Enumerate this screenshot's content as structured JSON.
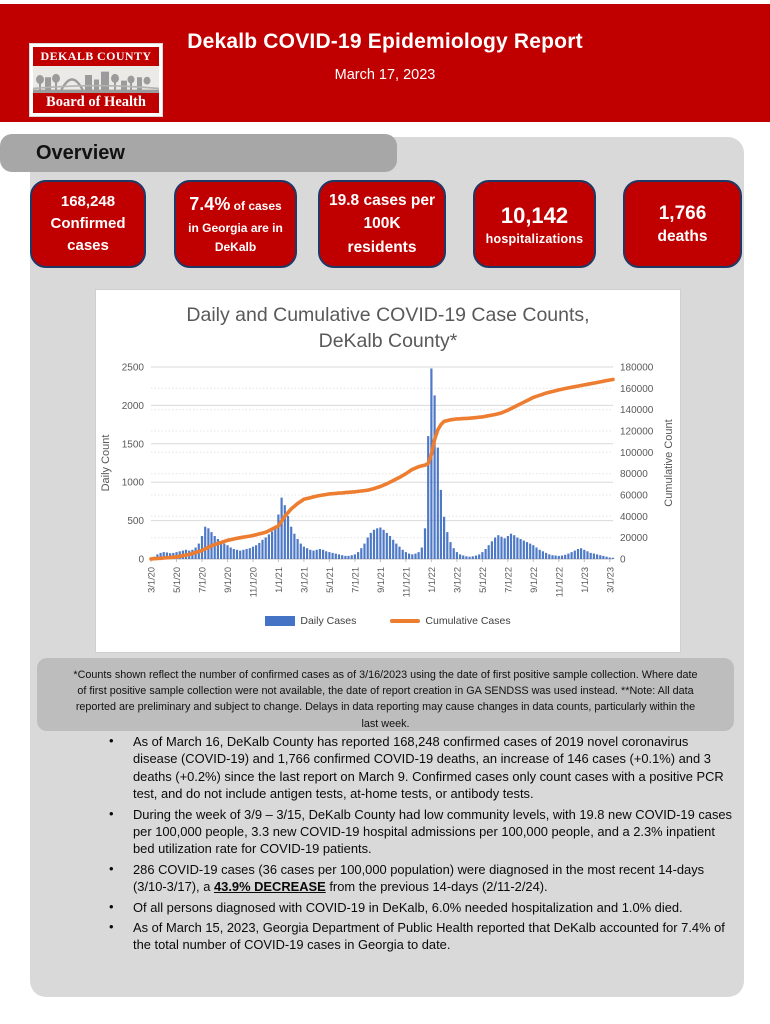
{
  "header": {
    "title": "Dekalb COVID-19 Epidemiology Report",
    "date": "March 17, 2023",
    "logo": {
      "line1": "DEKALB COUNTY",
      "line2": "Board of Health"
    }
  },
  "overview": {
    "label": "Overview"
  },
  "stat_cards": [
    {
      "value": "168,248",
      "label": "Confirmed cases"
    },
    {
      "value": "7.4%",
      "label": "of cases in Georgia are in DeKalb"
    },
    {
      "value": "19.8",
      "label": "cases per 100K residents"
    },
    {
      "value": "10,142",
      "label": "hospitalizations"
    },
    {
      "value": "1,766",
      "label": "deaths"
    }
  ],
  "chart_data": {
    "type": "bar",
    "title": "Daily and Cumulative COVID-19 Case Counts,",
    "title2": "DeKalb County*",
    "left_axis": {
      "label": "Daily Count",
      "min": 0,
      "max": 2500,
      "step": 500
    },
    "right_axis": {
      "label": "Cumulative Count",
      "min": 0,
      "max": 180000,
      "step": 20000
    },
    "x_tick_labels": [
      "3/1/20",
      "5/1/20",
      "7/1/20",
      "9/1/20",
      "11/1/20",
      "1/1/21",
      "3/1/21",
      "5/1/21",
      "7/1/21",
      "9/1/21",
      "11/1/21",
      "1/1/22",
      "3/1/22",
      "5/1/22",
      "7/1/22",
      "9/1/22",
      "11/1/22",
      "1/1/23",
      "3/1/23"
    ],
    "x_tick_indices": [
      0,
      8,
      16,
      24,
      32,
      40,
      48,
      56,
      64,
      72,
      80,
      88,
      96,
      104,
      112,
      120,
      128,
      136,
      144
    ],
    "legend_position": "bottom",
    "grid": true,
    "series": [
      {
        "name": "Daily Cases",
        "type": "bar",
        "color": "#4472C4",
        "values": [
          10,
          30,
          60,
          80,
          90,
          85,
          75,
          80,
          90,
          100,
          110,
          120,
          110,
          120,
          150,
          200,
          300,
          420,
          400,
          350,
          300,
          260,
          220,
          200,
          180,
          150,
          130,
          120,
          110,
          120,
          130,
          140,
          160,
          180,
          210,
          250,
          280,
          320,
          360,
          420,
          580,
          800,
          700,
          560,
          420,
          330,
          260,
          200,
          160,
          140,
          120,
          110,
          120,
          130,
          120,
          100,
          90,
          80,
          70,
          60,
          50,
          40,
          40,
          50,
          60,
          90,
          140,
          200,
          280,
          340,
          380,
          400,
          410,
          380,
          340,
          300,
          250,
          200,
          160,
          120,
          90,
          70,
          60,
          70,
          90,
          150,
          400,
          1600,
          2480,
          2130,
          1450,
          900,
          550,
          350,
          220,
          140,
          90,
          60,
          45,
          35,
          30,
          35,
          45,
          60,
          90,
          130,
          180,
          230,
          280,
          310,
          290,
          270,
          300,
          330,
          310,
          280,
          260,
          240,
          220,
          200,
          180,
          150,
          120,
          100,
          80,
          60,
          50,
          45,
          40,
          45,
          55,
          70,
          90,
          110,
          130,
          140,
          120,
          100,
          80,
          70,
          60,
          50,
          40,
          30,
          20,
          15
        ]
      },
      {
        "name": "Cumulative Cases",
        "type": "line",
        "color": "#ED7D31",
        "anchors": [
          [
            0,
            100
          ],
          [
            4,
            900
          ],
          [
            8,
            2000
          ],
          [
            12,
            4200
          ],
          [
            16,
            8000
          ],
          [
            18,
            11000
          ],
          [
            20,
            13500
          ],
          [
            24,
            17500
          ],
          [
            28,
            20000
          ],
          [
            32,
            22000
          ],
          [
            36,
            25000
          ],
          [
            40,
            31000
          ],
          [
            42,
            40000
          ],
          [
            44,
            47000
          ],
          [
            46,
            52000
          ],
          [
            48,
            56000
          ],
          [
            52,
            59000
          ],
          [
            56,
            61000
          ],
          [
            60,
            62000
          ],
          [
            64,
            63000
          ],
          [
            68,
            64500
          ],
          [
            70,
            66000
          ],
          [
            72,
            68000
          ],
          [
            74,
            70500
          ],
          [
            76,
            73500
          ],
          [
            78,
            76500
          ],
          [
            80,
            80000
          ],
          [
            82,
            84000
          ],
          [
            84,
            86500
          ],
          [
            86,
            88000
          ],
          [
            87,
            89500
          ],
          [
            88,
            98000
          ],
          [
            89,
            112000
          ],
          [
            90,
            121000
          ],
          [
            91,
            126000
          ],
          [
            92,
            129000
          ],
          [
            94,
            130500
          ],
          [
            96,
            131300
          ],
          [
            100,
            132000
          ],
          [
            104,
            133200
          ],
          [
            108,
            135500
          ],
          [
            110,
            137000
          ],
          [
            112,
            139500
          ],
          [
            114,
            142500
          ],
          [
            116,
            145500
          ],
          [
            118,
            148500
          ],
          [
            120,
            151500
          ],
          [
            122,
            153500
          ],
          [
            124,
            155500
          ],
          [
            126,
            157000
          ],
          [
            128,
            158500
          ],
          [
            130,
            159800
          ],
          [
            132,
            161000
          ],
          [
            136,
            163200
          ],
          [
            140,
            165500
          ],
          [
            144,
            167800
          ],
          [
            145,
            168248
          ]
        ]
      }
    ]
  },
  "footnote": "*Counts shown reflect the number of confirmed cases as of 3/16/2023 using the date of first positive sample collection. Where date of first positive sample collection were not available, the date of report creation in GA SENDSS was used instead. **Note: All data reported are preliminary and subject to change. Delays in data reporting may cause changes in data counts, particularly within the last week.",
  "bullets": [
    {
      "pre": "As of March 16, DeKalb County has reported 168,248 confirmed cases of 2019 novel coronavirus disease (COVID-19) and 1,766 confirmed COVID-19 deaths, an increase of 146 cases (+0.1%) and 3 deaths (+0.2%) since the last report on March 9. Confirmed cases only count cases with a positive PCR test, and do not include antigen tests, at-home tests, or antibody tests.",
      "bold": "",
      "post": ""
    },
    {
      "pre": "During the week of 3/9 – 3/15, DeKalb County had low community levels, with 19.8 new COVID-19 cases per 100,000 people, 3.3 new COVID-19 hospital admissions per 100,000 people, and a 2.3% inpatient bed utilization rate for COVID-19 patients.",
      "bold": "",
      "post": ""
    },
    {
      "pre": "286 COVID-19 cases (36 cases per 100,000 population) were diagnosed in the most recent 14-days (3/10-3/17), a ",
      "bold": "43.9% DECREASE",
      "post": " from the previous 14-days (2/11-2/24)."
    },
    {
      "pre": "Of all persons diagnosed with COVID-19 in DeKalb, 6.0% needed hospitalization and 1.0% died.",
      "bold": "",
      "post": ""
    },
    {
      "pre": "As of March 15, 2023, Georgia Department of Public Health reported that DeKalb accounted for 7.4% of the total number of COVID-19 cases in Georgia to date.",
      "bold": "",
      "post": ""
    }
  ],
  "colors": {
    "accent_red": "#C00000",
    "card_border_navy": "#1F3864",
    "panel_gray": "#D9D9D9",
    "tab_gray": "#A7A7A7",
    "footnote_gray": "#BDBDBD",
    "bar_blue": "#4472C4",
    "line_orange": "#ED7D31",
    "chart_text": "#595959"
  }
}
